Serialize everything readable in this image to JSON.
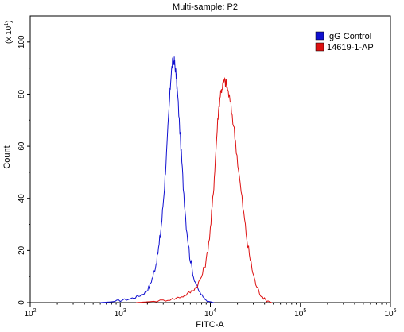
{
  "chart_data": {
    "type": "line",
    "title": "Multi-sample: P2",
    "xlabel": "FITC-A",
    "ylabel": "Count",
    "y_multiplier": "(x 10",
    "y_multiplier_exp": "1",
    "x_scale": "log",
    "xlim": [
      100,
      1000000
    ],
    "ylim": [
      0,
      110
    ],
    "x_ticks": [
      {
        "value": 100,
        "base": "10",
        "exp": "2"
      },
      {
        "value": 1000,
        "base": "10",
        "exp": "3"
      },
      {
        "value": 10000,
        "base": "10",
        "exp": "4"
      },
      {
        "value": 100000,
        "base": "10",
        "exp": "5"
      },
      {
        "value": 1000000,
        "base": "10",
        "exp": "6"
      }
    ],
    "y_ticks": [
      0,
      20,
      40,
      60,
      80,
      100
    ],
    "legend_position": "top-right",
    "colors": {
      "IgG Control": "#1010d0",
      "14619-1-AP": "#dd1111"
    },
    "series": [
      {
        "name": "IgG Control",
        "color": "#1010d0",
        "points": [
          [
            600,
            0
          ],
          [
            800,
            0.3
          ],
          [
            1000,
            0.8
          ],
          [
            1300,
            1.5
          ],
          [
            1600,
            2.5
          ],
          [
            1900,
            4
          ],
          [
            2100,
            6
          ],
          [
            2300,
            10
          ],
          [
            2500,
            15
          ],
          [
            2700,
            22
          ],
          [
            2900,
            32
          ],
          [
            3100,
            45
          ],
          [
            3300,
            60
          ],
          [
            3500,
            76
          ],
          [
            3650,
            87
          ],
          [
            3800,
            92
          ],
          [
            3950,
            93
          ],
          [
            4050,
            91
          ],
          [
            4200,
            86
          ],
          [
            4400,
            76
          ],
          [
            4700,
            60
          ],
          [
            5000,
            45
          ],
          [
            5400,
            30
          ],
          [
            5900,
            18
          ],
          [
            6500,
            10
          ],
          [
            7300,
            5
          ],
          [
            8300,
            2
          ],
          [
            9500,
            0.5
          ],
          [
            11000,
            0
          ]
        ]
      },
      {
        "name": "14619-1-AP",
        "color": "#dd1111",
        "points": [
          [
            1500,
            0
          ],
          [
            2000,
            0.3
          ],
          [
            3000,
            0.8
          ],
          [
            4000,
            1.5
          ],
          [
            5000,
            2.5
          ],
          [
            6000,
            4
          ],
          [
            7000,
            6
          ],
          [
            8000,
            10
          ],
          [
            9000,
            16
          ],
          [
            10000,
            28
          ],
          [
            10800,
            42
          ],
          [
            11500,
            58
          ],
          [
            12200,
            72
          ],
          [
            12900,
            80
          ],
          [
            13600,
            83
          ],
          [
            14300,
            85
          ],
          [
            15000,
            84
          ],
          [
            16000,
            80
          ],
          [
            17500,
            72
          ],
          [
            19000,
            62
          ],
          [
            21000,
            48
          ],
          [
            23500,
            34
          ],
          [
            26000,
            22
          ],
          [
            29000,
            13
          ],
          [
            32000,
            7
          ],
          [
            36000,
            3
          ],
          [
            41000,
            1
          ],
          [
            48000,
            0
          ]
        ]
      }
    ]
  }
}
